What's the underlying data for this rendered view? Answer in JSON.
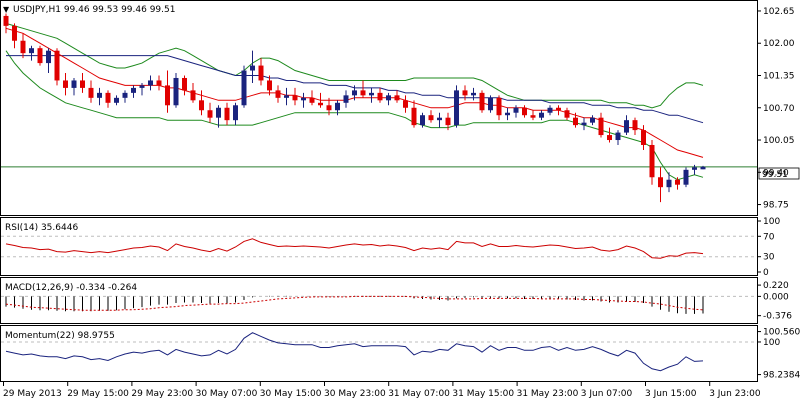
{
  "colors": {
    "up": "#1a237e",
    "down": "#e00000",
    "bb": "#1e8a1e",
    "ma_red": "#e00000",
    "ma_blue": "#1a237e",
    "rsi": "#cc0000",
    "macd": "#000000",
    "macd_signal": "#cc0000",
    "momentum": "#1a237e",
    "hline": "#2e7d32",
    "grid": "#bdbdbd"
  },
  "chart_data": [
    {
      "type": "candlestick",
      "symbol_header": "USDJPY,H1  99.46 99.53 99.46 99.51",
      "last_price_label": "99.51",
      "y_ticks": [
        "102.65",
        "102.00",
        "101.35",
        "100.70",
        "100.05",
        "99.40",
        "98.75"
      ],
      "ylim": [
        98.6,
        102.75
      ],
      "candles": [
        [
          102.55,
          102.6,
          102.2,
          102.35
        ],
        [
          102.35,
          102.4,
          101.9,
          102.05
        ],
        [
          102.05,
          102.2,
          101.7,
          101.8
        ],
        [
          101.8,
          101.95,
          101.65,
          101.9
        ],
        [
          101.9,
          101.95,
          101.55,
          101.6
        ],
        [
          101.6,
          101.9,
          101.4,
          101.85
        ],
        [
          101.85,
          101.9,
          101.15,
          101.25
        ],
        [
          101.25,
          101.4,
          100.95,
          101.1
        ],
        [
          101.1,
          101.3,
          100.95,
          101.25
        ],
        [
          101.25,
          101.4,
          101.0,
          101.1
        ],
        [
          101.1,
          101.25,
          100.8,
          100.9
        ],
        [
          100.9,
          101.1,
          100.75,
          101.0
        ],
        [
          101.0,
          101.05,
          100.7,
          100.8
        ],
        [
          100.8,
          100.95,
          100.75,
          100.9
        ],
        [
          100.9,
          101.05,
          100.8,
          101.0
        ],
        [
          101.0,
          101.15,
          100.9,
          101.1
        ],
        [
          101.1,
          101.2,
          100.95,
          101.15
        ],
        [
          101.15,
          101.35,
          101.05,
          101.25
        ],
        [
          101.25,
          101.35,
          101.05,
          101.15
        ],
        [
          101.15,
          101.45,
          100.6,
          100.75
        ],
        [
          100.75,
          101.4,
          100.7,
          101.3
        ],
        [
          101.3,
          101.35,
          100.95,
          101.05
        ],
        [
          101.05,
          101.2,
          100.8,
          100.85
        ],
        [
          100.85,
          101.05,
          100.55,
          100.65
        ],
        [
          100.65,
          100.8,
          100.4,
          100.5
        ],
        [
          100.5,
          100.75,
          100.3,
          100.7
        ],
        [
          100.7,
          100.8,
          100.35,
          100.45
        ],
        [
          100.45,
          100.8,
          100.35,
          100.75
        ],
        [
          100.75,
          101.55,
          100.7,
          101.45
        ],
        [
          101.45,
          101.85,
          101.2,
          101.55
        ],
        [
          101.55,
          101.7,
          101.15,
          101.25
        ],
        [
          101.25,
          101.35,
          100.95,
          101.05
        ],
        [
          101.05,
          101.15,
          100.8,
          100.9
        ],
        [
          100.9,
          101.1,
          100.75,
          100.95
        ],
        [
          100.95,
          101.1,
          100.75,
          100.85
        ],
        [
          100.85,
          101.0,
          100.7,
          100.9
        ],
        [
          100.9,
          101.05,
          100.75,
          100.8
        ],
        [
          100.8,
          101.0,
          100.7,
          100.75
        ],
        [
          100.75,
          100.9,
          100.55,
          100.65
        ],
        [
          100.65,
          100.85,
          100.55,
          100.8
        ],
        [
          100.8,
          101.05,
          100.7,
          100.95
        ],
        [
          100.95,
          101.15,
          100.85,
          101.05
        ],
        [
          101.05,
          101.25,
          100.9,
          100.95
        ],
        [
          100.95,
          101.1,
          100.8,
          101.0
        ],
        [
          101.0,
          101.1,
          100.8,
          100.85
        ],
        [
          100.85,
          101.0,
          100.75,
          100.95
        ],
        [
          100.95,
          101.05,
          100.8,
          100.85
        ],
        [
          100.85,
          100.95,
          100.6,
          100.7
        ],
        [
          100.7,
          100.85,
          100.3,
          100.35
        ],
        [
          100.35,
          100.6,
          100.3,
          100.55
        ],
        [
          100.55,
          100.65,
          100.4,
          100.45
        ],
        [
          100.45,
          100.6,
          100.3,
          100.5
        ],
        [
          100.5,
          100.6,
          100.25,
          100.35
        ],
        [
          100.35,
          101.15,
          100.3,
          101.05
        ],
        [
          101.05,
          101.15,
          100.85,
          100.95
        ],
        [
          100.95,
          101.1,
          100.85,
          101.0
        ],
        [
          101.0,
          101.05,
          100.6,
          100.65
        ],
        [
          100.65,
          100.95,
          100.6,
          100.9
        ],
        [
          100.9,
          100.95,
          100.45,
          100.55
        ],
        [
          100.55,
          100.7,
          100.45,
          100.6
        ],
        [
          100.6,
          100.75,
          100.5,
          100.7
        ],
        [
          100.7,
          100.75,
          100.5,
          100.55
        ],
        [
          100.55,
          100.65,
          100.45,
          100.5
        ],
        [
          100.5,
          100.65,
          100.45,
          100.6
        ],
        [
          100.6,
          100.75,
          100.55,
          100.7
        ],
        [
          100.7,
          100.75,
          100.55,
          100.65
        ],
        [
          100.65,
          100.7,
          100.45,
          100.5
        ],
        [
          100.5,
          100.6,
          100.3,
          100.35
        ],
        [
          100.35,
          100.5,
          100.25,
          100.4
        ],
        [
          100.4,
          100.55,
          100.35,
          100.5
        ],
        [
          100.5,
          100.6,
          100.1,
          100.15
        ],
        [
          100.15,
          100.3,
          100.0,
          100.05
        ],
        [
          100.05,
          100.25,
          99.95,
          100.2
        ],
        [
          100.2,
          100.55,
          100.15,
          100.45
        ],
        [
          100.45,
          100.5,
          100.15,
          100.25
        ],
        [
          100.25,
          100.35,
          99.85,
          99.95
        ],
        [
          99.95,
          100.05,
          99.15,
          99.3
        ],
        [
          99.3,
          99.5,
          98.8,
          99.1
        ],
        [
          99.1,
          99.4,
          99.0,
          99.25
        ],
        [
          99.25,
          99.3,
          99.05,
          99.15
        ],
        [
          99.15,
          99.5,
          99.1,
          99.45
        ],
        [
          99.45,
          99.55,
          99.35,
          99.5
        ],
        [
          99.46,
          99.53,
          99.46,
          99.51
        ]
      ],
      "bollinger_upper": [
        102.4,
        102.35,
        102.3,
        102.25,
        102.2,
        102.15,
        102.1,
        102.0,
        101.9,
        101.8,
        101.7,
        101.6,
        101.55,
        101.5,
        101.5,
        101.55,
        101.6,
        101.7,
        101.8,
        101.85,
        101.9,
        101.85,
        101.75,
        101.65,
        101.55,
        101.45,
        101.4,
        101.35,
        101.45,
        101.6,
        101.7,
        101.7,
        101.65,
        101.55,
        101.45,
        101.4,
        101.35,
        101.3,
        101.25,
        101.25,
        101.25,
        101.25,
        101.25,
        101.25,
        101.25,
        101.25,
        101.25,
        101.25,
        101.3,
        101.3,
        101.3,
        101.3,
        101.3,
        101.3,
        101.3,
        101.3,
        101.25,
        101.15,
        101.05,
        100.95,
        100.9,
        100.85,
        100.85,
        100.85,
        100.85,
        100.85,
        100.85,
        100.85,
        100.85,
        100.85,
        100.85,
        100.8,
        100.8,
        100.8,
        100.75,
        100.75,
        100.7,
        100.75,
        100.95,
        101.1,
        101.2,
        101.2,
        101.15
      ],
      "bollinger_lower": [
        101.85,
        101.6,
        101.4,
        101.25,
        101.1,
        101.0,
        100.9,
        100.8,
        100.75,
        100.7,
        100.65,
        100.6,
        100.55,
        100.5,
        100.5,
        100.5,
        100.5,
        100.5,
        100.5,
        100.45,
        100.45,
        100.45,
        100.45,
        100.45,
        100.4,
        100.35,
        100.35,
        100.35,
        100.35,
        100.35,
        100.4,
        100.45,
        100.5,
        100.55,
        100.6,
        100.6,
        100.6,
        100.6,
        100.6,
        100.6,
        100.6,
        100.6,
        100.6,
        100.6,
        100.6,
        100.6,
        100.55,
        100.5,
        100.4,
        100.35,
        100.3,
        100.3,
        100.3,
        100.35,
        100.35,
        100.4,
        100.4,
        100.4,
        100.4,
        100.4,
        100.4,
        100.4,
        100.4,
        100.4,
        100.45,
        100.45,
        100.45,
        100.4,
        100.35,
        100.3,
        100.25,
        100.2,
        100.15,
        100.1,
        100.05,
        100.0,
        99.9,
        99.6,
        99.35,
        99.25,
        99.3,
        99.35,
        99.3
      ],
      "ma_red": [
        102.3,
        102.25,
        102.2,
        102.1,
        102.0,
        101.9,
        101.8,
        101.7,
        101.6,
        101.5,
        101.4,
        101.3,
        101.25,
        101.2,
        101.15,
        101.15,
        101.15,
        101.15,
        101.15,
        101.1,
        101.1,
        101.05,
        101.0,
        100.95,
        100.9,
        100.85,
        100.85,
        100.85,
        100.9,
        100.95,
        101.0,
        101.0,
        101.0,
        100.95,
        100.95,
        100.9,
        100.9,
        100.85,
        100.85,
        100.85,
        100.85,
        100.9,
        100.9,
        100.9,
        100.9,
        100.9,
        100.9,
        100.85,
        100.8,
        100.75,
        100.7,
        100.7,
        100.7,
        100.75,
        100.8,
        100.8,
        100.8,
        100.75,
        100.75,
        100.7,
        100.7,
        100.7,
        100.65,
        100.65,
        100.65,
        100.65,
        100.6,
        100.55,
        100.5,
        100.5,
        100.45,
        100.4,
        100.35,
        100.3,
        100.3,
        100.25,
        100.15,
        100.05,
        99.95,
        99.85,
        99.8,
        99.75,
        99.7
      ],
      "ma_blue": [
        101.75,
        101.75,
        101.75,
        101.75,
        101.75,
        101.75,
        101.75,
        101.75,
        101.75,
        101.75,
        101.75,
        101.75,
        101.75,
        101.75,
        101.75,
        101.75,
        101.75,
        101.75,
        101.75,
        101.75,
        101.7,
        101.65,
        101.6,
        101.55,
        101.5,
        101.45,
        101.4,
        101.35,
        101.35,
        101.35,
        101.35,
        101.3,
        101.3,
        101.25,
        101.25,
        101.2,
        101.2,
        101.2,
        101.15,
        101.15,
        101.15,
        101.1,
        101.1,
        101.1,
        101.1,
        101.05,
        101.05,
        101.0,
        101.0,
        100.95,
        100.95,
        100.95,
        100.9,
        100.9,
        100.9,
        100.9,
        100.9,
        100.9,
        100.9,
        100.85,
        100.85,
        100.85,
        100.85,
        100.85,
        100.8,
        100.8,
        100.8,
        100.8,
        100.8,
        100.75,
        100.75,
        100.75,
        100.7,
        100.7,
        100.7,
        100.65,
        100.65,
        100.6,
        100.55,
        100.55,
        100.5,
        100.45,
        100.4
      ]
    },
    {
      "type": "line",
      "label": "RSI(14) 35.6446",
      "y_ticks": [
        "100",
        "70",
        "30",
        "0"
      ],
      "ylim": [
        0,
        100
      ],
      "levels": [
        70,
        30
      ],
      "values": [
        55,
        52,
        48,
        47,
        44,
        45,
        40,
        39,
        42,
        40,
        38,
        40,
        38,
        41,
        44,
        47,
        48,
        51,
        49,
        42,
        55,
        50,
        47,
        43,
        40,
        46,
        41,
        49,
        60,
        65,
        58,
        54,
        50,
        51,
        50,
        51,
        50,
        49,
        47,
        50,
        53,
        55,
        53,
        54,
        51,
        53,
        51,
        48,
        42,
        47,
        45,
        47,
        44,
        60,
        57,
        57,
        50,
        55,
        50,
        50,
        52,
        50,
        49,
        51,
        53,
        52,
        49,
        46,
        47,
        49,
        43,
        41,
        44,
        51,
        47,
        40,
        28,
        27,
        32,
        31,
        37,
        38,
        36
      ]
    },
    {
      "type": "bar+line",
      "label": "MACD(12,26,9) -0.334 -0.264",
      "y_ticks": [
        "0.220",
        "0.000",
        "-0.376"
      ],
      "ylim": [
        -0.48,
        0.3
      ],
      "histogram": [
        -0.2,
        -0.22,
        -0.24,
        -0.26,
        -0.27,
        -0.27,
        -0.28,
        -0.29,
        -0.29,
        -0.29,
        -0.29,
        -0.28,
        -0.28,
        -0.27,
        -0.25,
        -0.23,
        -0.21,
        -0.18,
        -0.16,
        -0.16,
        -0.13,
        -0.12,
        -0.12,
        -0.13,
        -0.14,
        -0.13,
        -0.14,
        -0.12,
        -0.07,
        -0.02,
        0.0,
        0.01,
        0.01,
        0.01,
        0.0,
        0.0,
        0.0,
        0.0,
        -0.01,
        -0.01,
        0.0,
        0.01,
        0.01,
        0.01,
        0.01,
        0.01,
        0.0,
        -0.01,
        -0.04,
        -0.05,
        -0.06,
        -0.07,
        -0.08,
        -0.04,
        -0.03,
        -0.02,
        -0.03,
        -0.03,
        -0.04,
        -0.04,
        -0.04,
        -0.05,
        -0.05,
        -0.05,
        -0.05,
        -0.05,
        -0.06,
        -0.07,
        -0.08,
        -0.08,
        -0.1,
        -0.12,
        -0.12,
        -0.11,
        -0.11,
        -0.13,
        -0.2,
        -0.26,
        -0.3,
        -0.33,
        -0.34,
        -0.34,
        -0.334
      ],
      "signal": [
        -0.15,
        -0.17,
        -0.19,
        -0.21,
        -0.22,
        -0.23,
        -0.24,
        -0.25,
        -0.26,
        -0.27,
        -0.27,
        -0.27,
        -0.27,
        -0.27,
        -0.26,
        -0.26,
        -0.25,
        -0.24,
        -0.22,
        -0.21,
        -0.2,
        -0.18,
        -0.17,
        -0.16,
        -0.15,
        -0.15,
        -0.14,
        -0.14,
        -0.13,
        -0.11,
        -0.09,
        -0.07,
        -0.05,
        -0.04,
        -0.03,
        -0.02,
        -0.01,
        -0.01,
        -0.01,
        -0.01,
        -0.01,
        0.0,
        0.0,
        0.0,
        0.0,
        0.0,
        0.0,
        0.0,
        -0.01,
        -0.02,
        -0.03,
        -0.04,
        -0.05,
        -0.05,
        -0.05,
        -0.05,
        -0.04,
        -0.04,
        -0.04,
        -0.04,
        -0.04,
        -0.04,
        -0.04,
        -0.05,
        -0.05,
        -0.05,
        -0.05,
        -0.05,
        -0.06,
        -0.06,
        -0.07,
        -0.08,
        -0.09,
        -0.1,
        -0.1,
        -0.11,
        -0.13,
        -0.15,
        -0.18,
        -0.21,
        -0.23,
        -0.25,
        -0.264
      ]
    },
    {
      "type": "line",
      "label": "Momentum(22) 98.9755",
      "y_ticks": [
        "100.5604",
        "100",
        "98.2384"
      ],
      "ylim": [
        98.0,
        100.7
      ],
      "values": [
        99.5,
        99.4,
        99.3,
        99.35,
        99.25,
        99.2,
        99.2,
        99.1,
        99.25,
        99.2,
        99.05,
        99.1,
        99.0,
        99.2,
        99.35,
        99.45,
        99.4,
        99.5,
        99.55,
        99.3,
        99.6,
        99.45,
        99.35,
        99.25,
        99.3,
        99.55,
        99.35,
        99.6,
        100.2,
        100.5,
        100.3,
        100.1,
        99.95,
        99.9,
        99.85,
        99.85,
        99.85,
        99.7,
        99.7,
        99.8,
        99.85,
        99.9,
        99.75,
        99.8,
        99.8,
        99.8,
        99.8,
        99.75,
        99.3,
        99.5,
        99.45,
        99.6,
        99.55,
        99.9,
        99.8,
        99.75,
        99.45,
        99.8,
        99.55,
        99.7,
        99.7,
        99.55,
        99.55,
        99.7,
        99.75,
        99.55,
        99.7,
        99.55,
        99.6,
        99.75,
        99.6,
        99.4,
        99.25,
        99.55,
        99.4,
        98.85,
        98.55,
        98.45,
        98.65,
        98.8,
        99.2,
        98.95,
        98.98
      ]
    }
  ],
  "time_labels": [
    "29 May 2013",
    "29 May 15:00",
    "29 May 23:00",
    "30 May 07:00",
    "30 May 15:00",
    "30 May 23:00",
    "31 May 07:00",
    "31 May 15:00",
    "31 May 23:00",
    "3 Jun 07:00",
    "3 Jun 15:00",
    "3 Jun 23:00"
  ]
}
